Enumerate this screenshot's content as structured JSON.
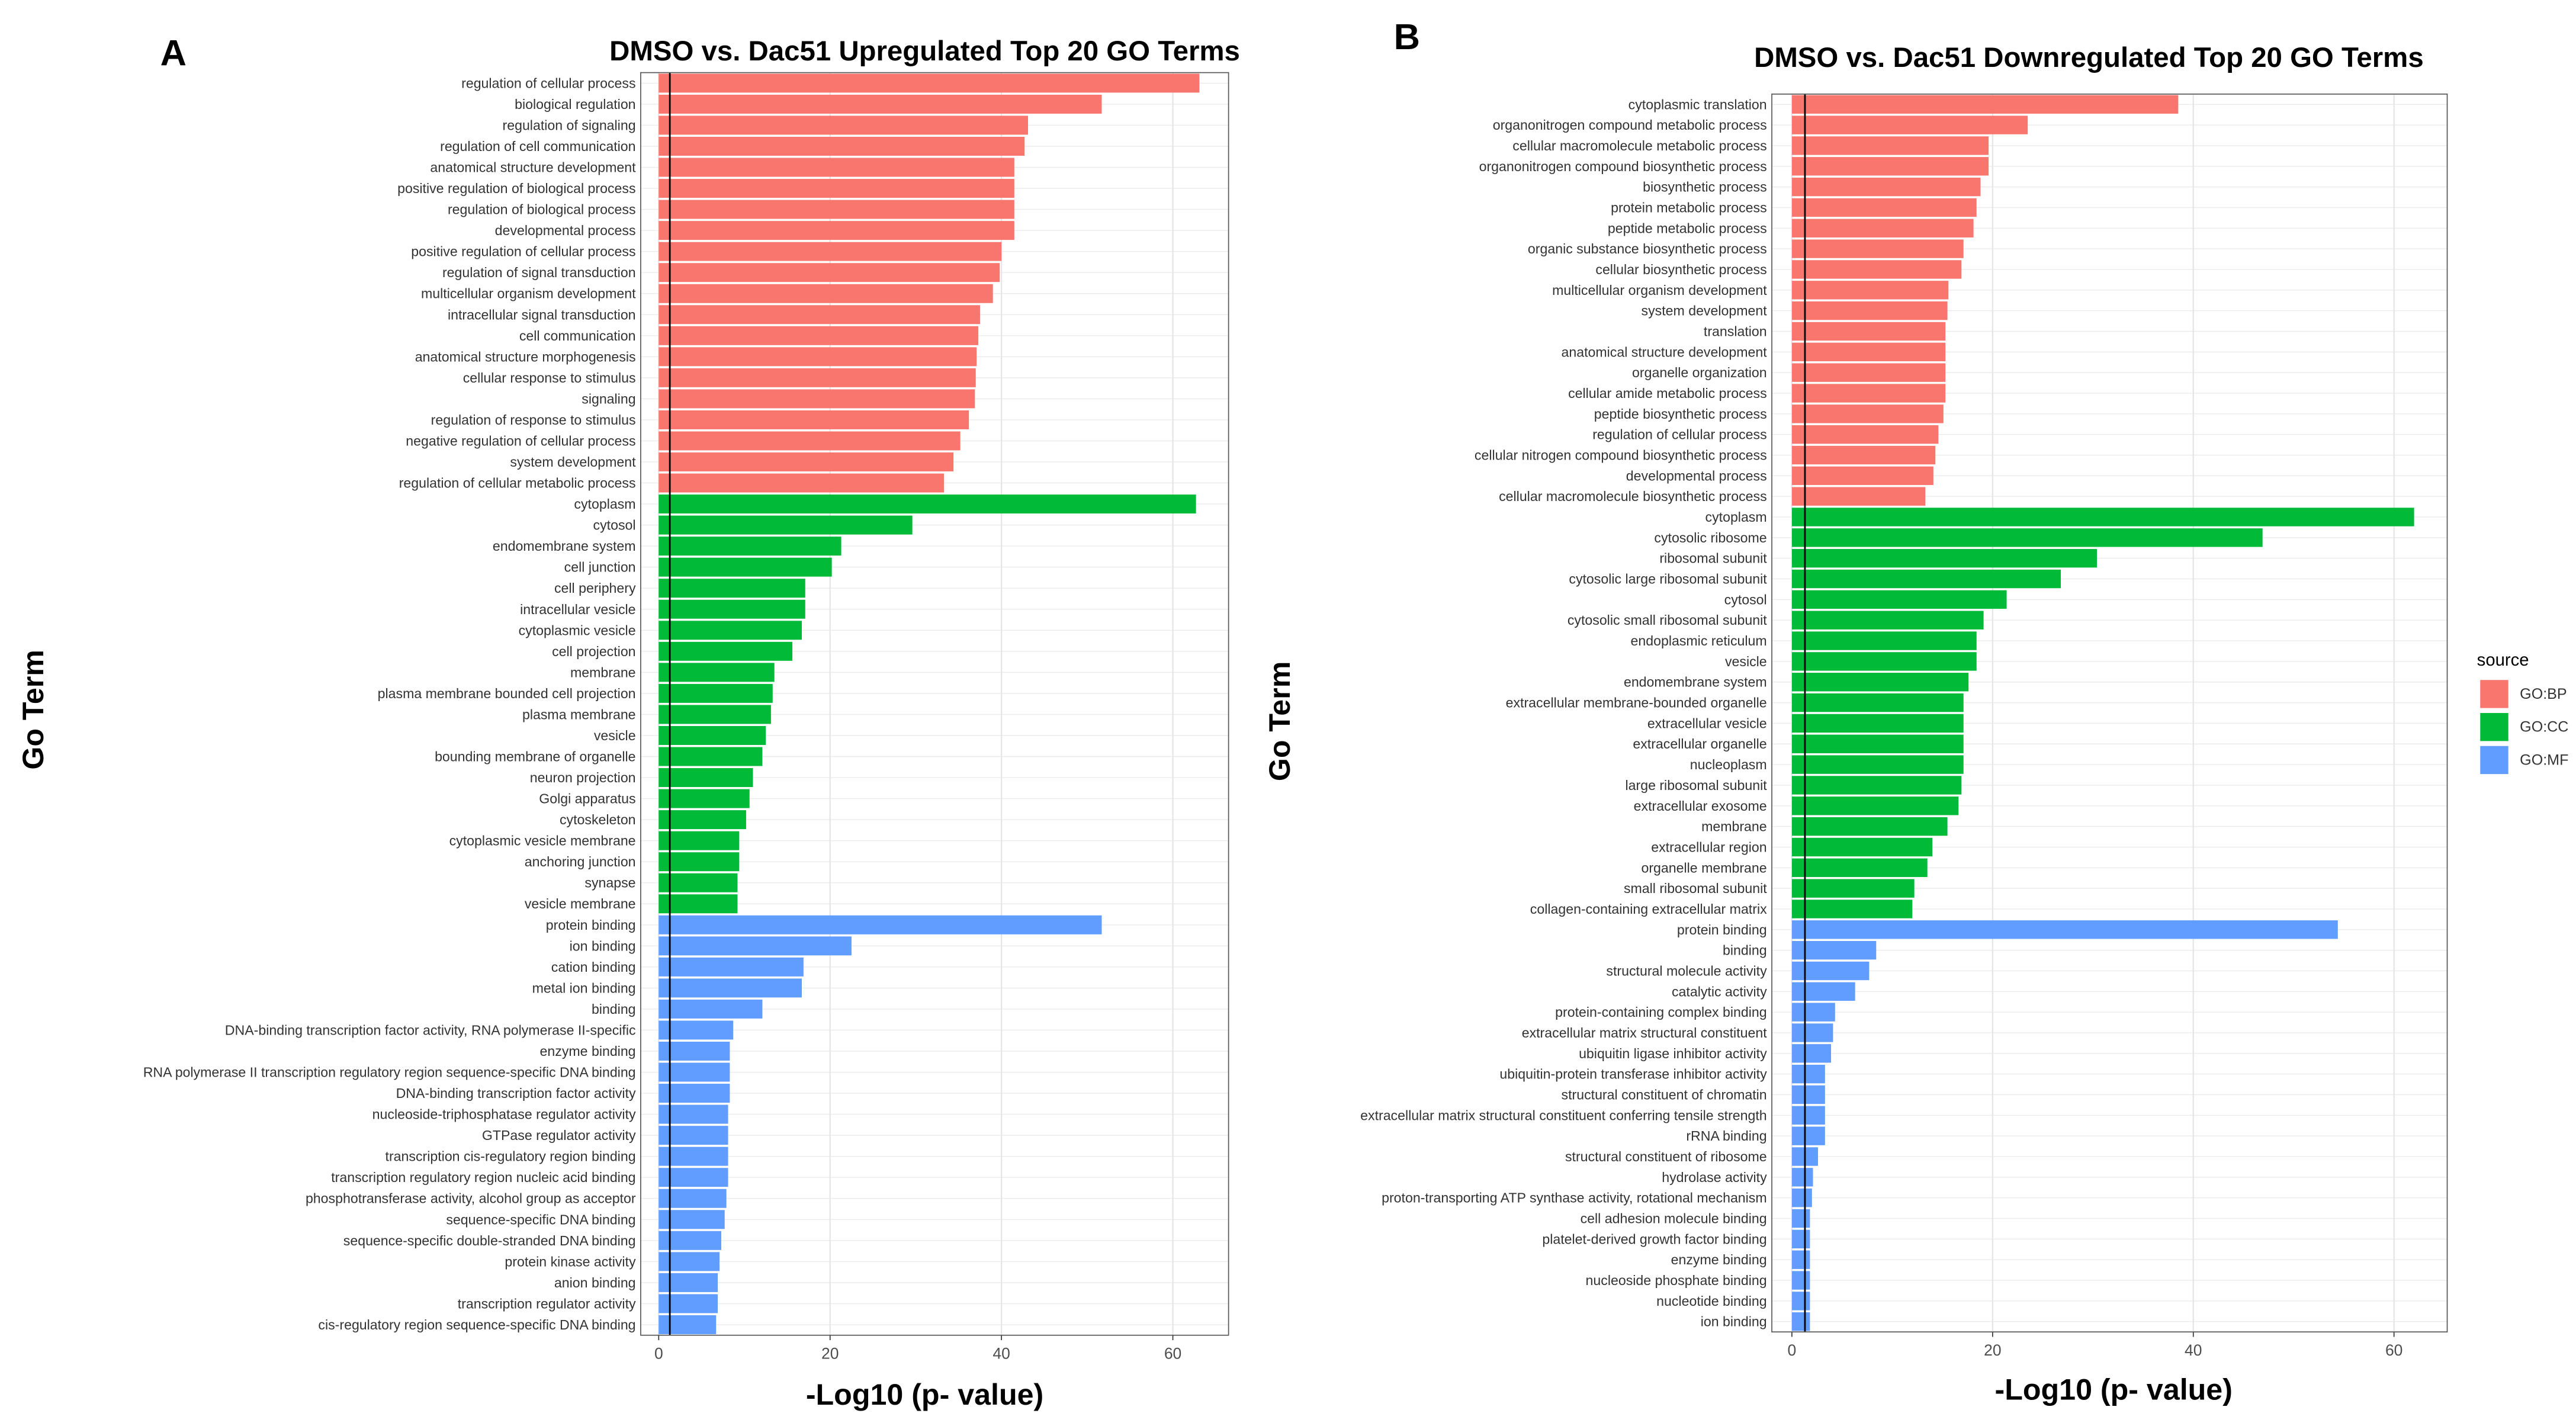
{
  "chart_data": [
    {
      "type": "hbar",
      "panel": "A",
      "title": "DMSO vs. Dac51 Upregulated Top 20 GO Terms",
      "xlabel": "-Log10 (p- value)",
      "ylabel": "Go Term",
      "xlim": [
        -2.1,
        66.5
      ],
      "xticks": [
        0,
        20,
        40,
        60
      ],
      "grid": true,
      "reference_line": 1.3,
      "categories": [
        "regulation of cellular process",
        "biological regulation",
        "regulation of signaling",
        "regulation of cell communication",
        "anatomical structure development",
        "positive regulation of biological process",
        "regulation of biological process",
        "developmental process",
        "positive regulation of cellular process",
        "regulation of signal transduction",
        "multicellular organism development",
        "intracellular signal transduction",
        "cell communication",
        "anatomical structure morphogenesis",
        "cellular response to stimulus",
        "signaling",
        "regulation of response to stimulus",
        "negative regulation of cellular process",
        "system development",
        "regulation of cellular metabolic process",
        "cytoplasm",
        "cytosol",
        "endomembrane system",
        "cell junction",
        "cell periphery",
        "intracellular vesicle",
        "cytoplasmic vesicle",
        "cell projection",
        "membrane",
        "plasma membrane bounded cell projection",
        "plasma membrane",
        "vesicle",
        "bounding membrane of organelle",
        "neuron projection",
        "Golgi apparatus",
        "cytoskeleton",
        "cytoplasmic vesicle membrane",
        "anchoring junction",
        "synapse",
        "vesicle membrane",
        "protein binding",
        "ion binding",
        "cation binding",
        "metal ion binding",
        "binding",
        "DNA-binding transcription factor activity, RNA polymerase II-specific",
        "enzyme binding",
        "RNA polymerase II transcription regulatory region sequence-specific DNA binding",
        "DNA-binding transcription factor activity",
        "nucleoside-triphosphatase regulator activity",
        "GTPase regulator activity",
        "transcription cis-regulatory region binding",
        "transcription regulatory region nucleic acid binding",
        "phosphotransferase activity, alcohol group as acceptor",
        "sequence-specific DNA binding",
        "sequence-specific double-stranded DNA binding",
        "protein kinase activity",
        "anion binding",
        "transcription regulator activity",
        "cis-regulatory region sequence-specific DNA binding"
      ],
      "series": [
        {
          "name": "GO:BP",
          "color": "#F8766D",
          "values": [
            63.1,
            51.7,
            43.1,
            42.7,
            41.5,
            41.5,
            41.5,
            41.5,
            40.0,
            39.8,
            39.0,
            37.5,
            37.3,
            37.1,
            37.0,
            36.9,
            36.2,
            35.2,
            34.4,
            33.3,
            null,
            null,
            null,
            null,
            null,
            null,
            null,
            null,
            null,
            null,
            null,
            null,
            null,
            null,
            null,
            null,
            null,
            null,
            null,
            null,
            null,
            null,
            null,
            null,
            null,
            null,
            null,
            null,
            null,
            null,
            null,
            null,
            null,
            null,
            null,
            null,
            null,
            null,
            null,
            null
          ]
        },
        {
          "name": "GO:CC",
          "color": "#00BA38",
          "values": [
            null,
            null,
            null,
            null,
            null,
            null,
            null,
            null,
            null,
            null,
            null,
            null,
            null,
            null,
            null,
            null,
            null,
            null,
            null,
            null,
            62.7,
            29.6,
            21.3,
            20.2,
            17.1,
            17.1,
            16.7,
            15.6,
            13.5,
            13.3,
            13.1,
            12.5,
            12.1,
            11.0,
            10.6,
            10.2,
            9.4,
            9.4,
            9.2,
            9.2,
            null,
            null,
            null,
            null,
            null,
            null,
            null,
            null,
            null,
            null,
            null,
            null,
            null,
            null,
            null,
            null,
            null,
            null,
            null,
            null
          ]
        },
        {
          "name": "GO:MF",
          "color": "#619CFF",
          "values": [
            null,
            null,
            null,
            null,
            null,
            null,
            null,
            null,
            null,
            null,
            null,
            null,
            null,
            null,
            null,
            null,
            null,
            null,
            null,
            null,
            null,
            null,
            null,
            null,
            null,
            null,
            null,
            null,
            null,
            null,
            null,
            null,
            null,
            null,
            null,
            null,
            null,
            null,
            null,
            null,
            51.7,
            22.5,
            16.9,
            16.7,
            12.1,
            8.7,
            8.3,
            8.3,
            8.3,
            8.1,
            8.1,
            8.1,
            8.1,
            7.9,
            7.7,
            7.3,
            7.1,
            6.9,
            6.9,
            6.7
          ]
        }
      ]
    },
    {
      "type": "hbar",
      "panel": "B",
      "title": "DMSO vs. Dac51 Downregulated Top 20 GO Terms",
      "xlabel": "-Log10 (p- value)",
      "ylabel": "Go Term",
      "xlim": [
        -2.0,
        65.3
      ],
      "xticks": [
        0,
        20,
        40,
        60
      ],
      "grid": true,
      "reference_line": 1.3,
      "legend": {
        "title": "source",
        "position": "right"
      },
      "categories": [
        "cytoplasmic translation",
        "organonitrogen compound metabolic process",
        "cellular macromolecule metabolic process",
        "organonitrogen compound biosynthetic process",
        "biosynthetic process",
        "protein metabolic process",
        "peptide metabolic process",
        "organic substance biosynthetic process",
        "cellular biosynthetic process",
        "multicellular organism development",
        "system development",
        "translation",
        "anatomical structure development",
        "organelle organization",
        "cellular amide metabolic process",
        "peptide biosynthetic process",
        "regulation of cellular process",
        "cellular nitrogen compound biosynthetic process",
        "developmental process",
        "cellular macromolecule biosynthetic process",
        "cytoplasm",
        "cytosolic ribosome",
        "ribosomal subunit",
        "cytosolic large ribosomal subunit",
        "cytosol",
        "cytosolic small ribosomal subunit",
        "endoplasmic reticulum",
        "vesicle",
        "endomembrane system",
        "extracellular membrane-bounded organelle",
        "extracellular vesicle",
        "extracellular organelle",
        "nucleoplasm",
        "large ribosomal subunit",
        "extracellular exosome",
        "membrane",
        "extracellular region",
        "organelle membrane",
        "small ribosomal subunit",
        "collagen-containing extracellular matrix",
        "protein binding",
        "binding",
        "structural molecule activity",
        "catalytic activity",
        "protein-containing complex binding",
        "extracellular matrix structural constituent",
        "ubiquitin ligase inhibitor activity",
        "ubiquitin-protein transferase inhibitor activity",
        "structural constituent of chromatin",
        "extracellular matrix structural constituent conferring tensile strength",
        "rRNA binding",
        "structural constituent of ribosome",
        "hydrolase activity",
        "proton-transporting ATP synthase activity, rotational mechanism",
        "cell adhesion molecule binding",
        "platelet-derived growth factor binding",
        "enzyme binding",
        "nucleoside phosphate binding",
        "nucleotide binding",
        "ion binding"
      ],
      "series": [
        {
          "name": "GO:BP",
          "color": "#F8766D",
          "values": [
            38.5,
            23.5,
            19.6,
            19.6,
            18.8,
            18.4,
            18.1,
            17.1,
            16.9,
            15.6,
            15.5,
            15.3,
            15.3,
            15.3,
            15.3,
            15.1,
            14.6,
            14.3,
            14.1,
            13.3,
            null,
            null,
            null,
            null,
            null,
            null,
            null,
            null,
            null,
            null,
            null,
            null,
            null,
            null,
            null,
            null,
            null,
            null,
            null,
            null,
            null,
            null,
            null,
            null,
            null,
            null,
            null,
            null,
            null,
            null,
            null,
            null,
            null,
            null,
            null,
            null,
            null,
            null,
            null,
            null
          ]
        },
        {
          "name": "GO:CC",
          "color": "#00BA38",
          "values": [
            null,
            null,
            null,
            null,
            null,
            null,
            null,
            null,
            null,
            null,
            null,
            null,
            null,
            null,
            null,
            null,
            null,
            null,
            null,
            null,
            62.0,
            46.9,
            30.4,
            26.8,
            21.4,
            19.1,
            18.4,
            18.4,
            17.6,
            17.1,
            17.1,
            17.1,
            17.1,
            16.9,
            16.6,
            15.5,
            14.0,
            13.5,
            12.2,
            12.0,
            null,
            null,
            null,
            null,
            null,
            null,
            null,
            null,
            null,
            null,
            null,
            null,
            null,
            null,
            null,
            null,
            null,
            null,
            null,
            null
          ]
        },
        {
          "name": "GO:MF",
          "color": "#619CFF",
          "values": [
            null,
            null,
            null,
            null,
            null,
            null,
            null,
            null,
            null,
            null,
            null,
            null,
            null,
            null,
            null,
            null,
            null,
            null,
            null,
            null,
            null,
            null,
            null,
            null,
            null,
            null,
            null,
            null,
            null,
            null,
            null,
            null,
            null,
            null,
            null,
            null,
            null,
            null,
            null,
            null,
            54.4,
            8.4,
            7.7,
            6.3,
            4.3,
            4.1,
            3.9,
            3.3,
            3.3,
            3.3,
            3.3,
            2.6,
            2.1,
            2.0,
            1.8,
            1.8,
            1.8,
            1.8,
            1.8,
            1.8
          ]
        }
      ]
    }
  ]
}
